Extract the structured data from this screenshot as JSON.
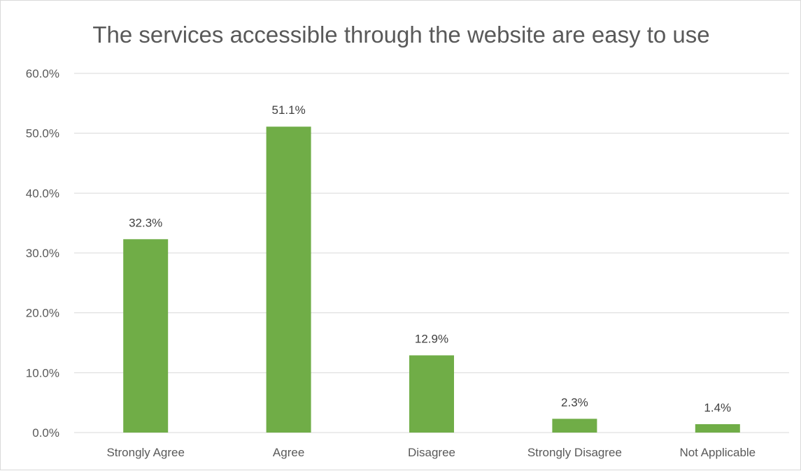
{
  "chart_data": {
    "type": "bar",
    "title": "The services accessible through the website are easy to use",
    "categories": [
      "Strongly Agree",
      "Agree",
      "Disagree",
      "Strongly Disagree",
      "Not Applicable"
    ],
    "values": [
      32.3,
      51.1,
      12.9,
      2.3,
      1.4
    ],
    "data_labels": [
      "32.3%",
      "51.1%",
      "12.9%",
      "2.3%",
      "1.4%"
    ],
    "ylim": [
      0,
      60
    ],
    "y_ticks": [
      0,
      10,
      20,
      30,
      40,
      50,
      60
    ],
    "y_tick_labels": [
      "0.0%",
      "10.0%",
      "20.0%",
      "30.0%",
      "40.0%",
      "50.0%",
      "60.0%"
    ],
    "xlabel": "",
    "ylabel": "",
    "grid": true,
    "legend": "none",
    "bar_color": "#70ad47",
    "grid_color": "#d9d9d9"
  }
}
